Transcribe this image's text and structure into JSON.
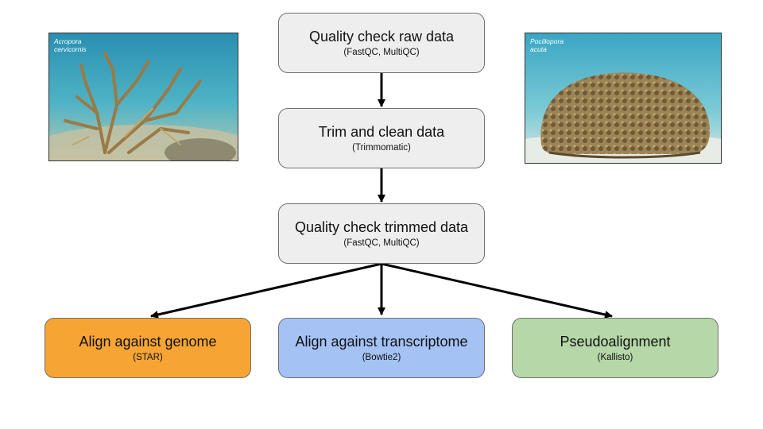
{
  "colors": {
    "neutral_box": "#eeeeee",
    "orange_box": "#f6a534",
    "blue_box": "#a4c2f4",
    "green_box": "#b6d7a8",
    "arrow": "#000000"
  },
  "photos": {
    "left": {
      "caption_line1": "Acropora",
      "caption_line2": "cervicornis",
      "subject": "branching-coral-photo"
    },
    "right": {
      "caption_line1": "Pocillopora",
      "caption_line2": "acuta",
      "subject": "mound-coral-photo"
    }
  },
  "steps": {
    "qc_raw": {
      "title": "Quality check raw data",
      "tools": "(FastQC, MultiQC)"
    },
    "trim": {
      "title": "Trim and clean data",
      "tools": "(Trimmomatic)"
    },
    "qc_trimmed": {
      "title": "Quality check trimmed data",
      "tools": "(FastQC, MultiQC)"
    },
    "align_genome": {
      "title": "Align against genome",
      "tools": "(STAR)"
    },
    "align_transcriptome": {
      "title": "Align against transcriptome",
      "tools": "(Bowtie2)"
    },
    "pseudoalignment": {
      "title": "Pseudoalignment",
      "tools": "(Kallisto)"
    }
  },
  "edges": [
    {
      "from": "qc_raw",
      "to": "trim"
    },
    {
      "from": "trim",
      "to": "qc_trimmed"
    },
    {
      "from": "qc_trimmed",
      "to": "align_genome"
    },
    {
      "from": "qc_trimmed",
      "to": "align_transcriptome"
    },
    {
      "from": "qc_trimmed",
      "to": "pseudoalignment"
    }
  ]
}
